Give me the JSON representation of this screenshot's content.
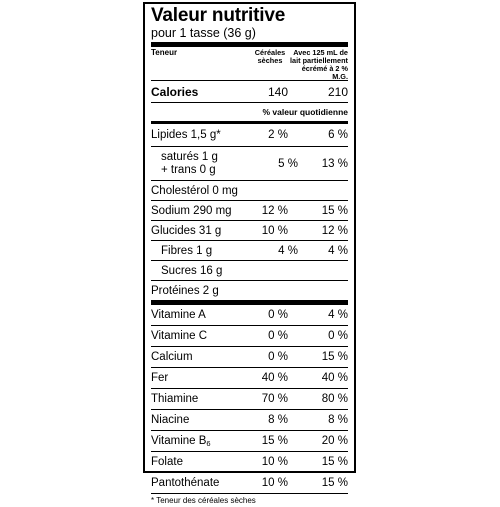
{
  "label": {
    "title": "Valeur nutritive",
    "serving": "pour 1 tasse (36 g)",
    "headers": {
      "teneur": "Teneur",
      "dry": "Céréales sèches",
      "milk": "Avec 125 mL de lait partiellement écrémé à 2 % M.G."
    },
    "calories": {
      "label": "Calories",
      "dry": "140",
      "milk": "210"
    },
    "dv_header": "% valeur quotidienne",
    "lipides": {
      "label": "Lipides 1,5 g*",
      "dry": "2 %",
      "milk": "6 %"
    },
    "satures": {
      "line1": "saturés 1 g",
      "line2": "+ trans 0 g",
      "dry": "5 %",
      "milk": "13 %"
    },
    "cholesterol": {
      "label": "Cholestérol 0 mg"
    },
    "sodium": {
      "label": "Sodium 290 mg",
      "dry": "12 %",
      "milk": "15 %"
    },
    "glucides": {
      "label": "Glucides 31 g",
      "dry": "10 %",
      "milk": "12 %"
    },
    "fibres": {
      "label": "Fibres 1 g",
      "dry": "4 %",
      "milk": "4 %"
    },
    "sucres": {
      "label": "Sucres 16 g"
    },
    "proteines": {
      "label": "Protéines 2 g"
    },
    "vitamines": [
      {
        "label": "Vitamine A",
        "dry": "0 %",
        "milk": "4 %"
      },
      {
        "label": "Vitamine C",
        "dry": "0 %",
        "milk": "0 %"
      },
      {
        "label": "Calcium",
        "dry": "0 %",
        "milk": "15 %"
      },
      {
        "label": "Fer",
        "dry": "40 %",
        "milk": "40 %"
      },
      {
        "label": "Thiamine",
        "dry": "70 %",
        "milk": "80 %"
      },
      {
        "label": "Niacine",
        "dry": "8 %",
        "milk": "8 %"
      },
      {
        "label": "Vitamine B",
        "sub": "6",
        "dry": "15 %",
        "milk": "20 %"
      },
      {
        "label": "Folate",
        "dry": "10 %",
        "milk": "15 %"
      },
      {
        "label": "Pantothénate",
        "dry": "10 %",
        "milk": "15 %"
      }
    ],
    "footnote": "* Teneur des céréales sèches"
  }
}
